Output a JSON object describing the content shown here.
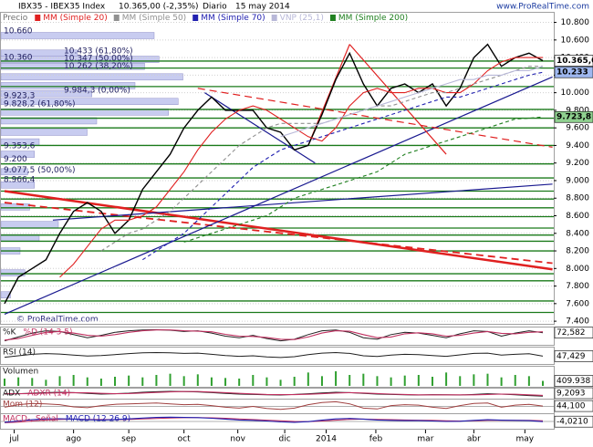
{
  "chart_data": [
    {
      "type": "line",
      "title": "IBX35 - IBEX35 Index",
      "last_change": "10.365,00 (-2,35%)",
      "period": "Diario",
      "date": "15 may 2014",
      "source": "www.ProRealTime.com",
      "watermark": "© ProRealTime.com",
      "ylim": [
        7370,
        10920
      ],
      "yticks": [
        {
          "value": 7400,
          "label": "7.400"
        },
        {
          "value": 7600,
          "label": "7.600"
        },
        {
          "value": 7800,
          "label": "7.800"
        },
        {
          "value": 8000,
          "label": "8.000"
        },
        {
          "value": 8200,
          "label": "8.200"
        },
        {
          "value": 8400,
          "label": "8.400"
        },
        {
          "value": 8600,
          "label": "8.600"
        },
        {
          "value": 8800,
          "label": "8.800"
        },
        {
          "value": 9000,
          "label": "9.000"
        },
        {
          "value": 9200,
          "label": "9.200"
        },
        {
          "value": 9400,
          "label": "9.400"
        },
        {
          "value": 9600,
          "label": "9.600"
        },
        {
          "value": 9800,
          "label": "9.800"
        },
        {
          "value": 10000,
          "label": "10.000"
        },
        {
          "value": 10200,
          "label": "10.200"
        },
        {
          "value": 10400,
          "label": "10.400"
        },
        {
          "value": 10600,
          "label": "10.600"
        },
        {
          "value": 10800,
          "label": "10.800"
        }
      ],
      "grid": true,
      "x_labels": [
        {
          "value": 0.7,
          "label": "jul"
        },
        {
          "value": 5,
          "label": "ago"
        },
        {
          "value": 9,
          "label": "sep"
        },
        {
          "value": 13,
          "label": "oct"
        },
        {
          "value": 16.9,
          "label": "nov"
        },
        {
          "value": 20.3,
          "label": "dic"
        },
        {
          "value": 23.3,
          "label": "2014"
        },
        {
          "value": 26.9,
          "label": "feb"
        },
        {
          "value": 30.5,
          "label": "mar"
        },
        {
          "value": 34,
          "label": "abr"
        },
        {
          "value": 37.7,
          "label": "may"
        }
      ],
      "series": [
        {
          "name": "Precio",
          "color": "#000000",
          "values": [
            7600,
            7900,
            8000,
            8100,
            8400,
            8650,
            8750,
            8650,
            8400,
            8550,
            8900,
            9100,
            9300,
            9600,
            9800,
            9950,
            9800,
            9800,
            9800,
            9600,
            9550,
            9350,
            9400,
            9750,
            10150,
            10450,
            10100,
            9850,
            10050,
            10100,
            10000,
            10100,
            9850,
            10050,
            10400,
            10550,
            10300,
            10400,
            10450,
            10365
          ]
        },
        {
          "name": "MM (Simple 20)",
          "color": "#e02020",
          "values": [
            null,
            null,
            null,
            null,
            7900,
            8050,
            8250,
            8450,
            8550,
            8550,
            8600,
            8700,
            8900,
            9100,
            9350,
            9550,
            9700,
            9800,
            9850,
            9800,
            9700,
            9600,
            9500,
            9450,
            9600,
            9850,
            10000,
            10050,
            10000,
            10000,
            10050,
            10050,
            10000,
            10000,
            10100,
            10250,
            10350,
            10400,
            10400,
            10400
          ]
        },
        {
          "name": "MM (Simple 50)",
          "color": "#909090",
          "dash": true,
          "values": [
            null,
            null,
            null,
            null,
            null,
            null,
            null,
            8200,
            8300,
            8400,
            8450,
            8550,
            8650,
            8800,
            8950,
            9100,
            9250,
            9400,
            9500,
            9600,
            9650,
            9650,
            9650,
            9650,
            9700,
            9750,
            9800,
            9850,
            9850,
            9900,
            9950,
            10000,
            10000,
            10050,
            10100,
            10150,
            10200,
            10250,
            10300,
            10300
          ]
        },
        {
          "name": "MM (Simple 70)",
          "color": "#2020b0",
          "dash": true,
          "values": [
            null,
            null,
            null,
            null,
            null,
            null,
            null,
            null,
            null,
            null,
            8100,
            8200,
            8300,
            8400,
            8550,
            8700,
            8850,
            9000,
            9150,
            9250,
            9350,
            9400,
            9450,
            9500,
            9550,
            9600,
            9650,
            9700,
            9750,
            9800,
            9850,
            9900,
            9950,
            9950,
            10000,
            10050,
            10100,
            10150,
            10200,
            10233
          ]
        },
        {
          "name": "VNP (25,1)",
          "color": "#b8b8d8",
          "values": [
            null,
            null,
            null,
            null,
            null,
            null,
            null,
            null,
            null,
            null,
            null,
            null,
            null,
            null,
            null,
            null,
            null,
            null,
            null,
            null,
            9500,
            9550,
            9600,
            9650,
            9700,
            9750,
            9800,
            9850,
            9900,
            9950,
            10000,
            10050,
            10100,
            10150,
            10150,
            10200,
            10200,
            10250,
            10250,
            10300
          ]
        },
        {
          "name": "MM (Simple 200)",
          "color": "#208020",
          "dash": true,
          "values": [
            null,
            null,
            null,
            null,
            null,
            null,
            null,
            null,
            null,
            null,
            null,
            null,
            null,
            8300,
            8350,
            8400,
            8450,
            8500,
            8550,
            8600,
            8700,
            8800,
            8850,
            8900,
            8950,
            9000,
            9050,
            9100,
            9200,
            9300,
            9350,
            9400,
            9450,
            9500,
            9550,
            9600,
            9650,
            9700,
            9710,
            9723.8
          ]
        }
      ],
      "levels": [
        10360,
        10280,
        10070,
        9810,
        9710,
        9600,
        9400,
        9190,
        9030,
        8880,
        8790,
        8690,
        8590,
        8460,
        8380,
        8310,
        8200,
        7940,
        7860,
        7630,
        7500
      ],
      "levels_color": "#1a7a1a",
      "trendlines": [
        {
          "from": [
            0,
            8880
          ],
          "to": [
            39.7,
            7990
          ],
          "color": "#e02020"
        },
        {
          "from": [
            0,
            8750
          ],
          "to": [
            39.7,
            8060
          ],
          "color": "#e02020"
        },
        {
          "from": [
            0,
            7480
          ],
          "to": [
            39.7,
            10180
          ],
          "color": "#1a1a90"
        },
        {
          "from": [
            3.5,
            8550
          ],
          "to": [
            39.7,
            8960
          ],
          "color": "#1a1a90"
        },
        {
          "from": [
            14,
            10050
          ],
          "to": [
            39.7,
            9380
          ],
          "color": "#e02020"
        },
        {
          "from": [
            14.5,
            10000
          ],
          "to": [
            22.5,
            9200
          ],
          "color": "#1a1a90"
        },
        {
          "from": [
            22,
            9400
          ],
          "to": [
            25,
            10550
          ],
          "color": "#e02020"
        },
        {
          "from": [
            25,
            10550
          ],
          "to": [
            32,
            9300
          ],
          "color": "#e02020"
        }
      ],
      "volume_profile": {
        "color": "#c8ccf0",
        "xlim": [
          0,
          200
        ],
        "prices": [
          10650,
          10450,
          10380,
          10300,
          10180,
          10080,
          9990,
          9900,
          9780,
          9680,
          9550,
          9440,
          9300,
          9100,
          8950,
          8700,
          8500,
          8350,
          8200,
          7950,
          7700
        ],
        "values": [
          160,
          80,
          165,
          150,
          190,
          140,
          95,
          185,
          175,
          100,
          90,
          40,
          35,
          28,
          35,
          30,
          60,
          40,
          20,
          25,
          10
        ]
      },
      "level_labels": [
        {
          "value": 10660,
          "label": "10.660"
        },
        {
          "value": 10360,
          "label": "10.360"
        },
        {
          "value": 10433,
          "label": "10.433 (61,80%)"
        },
        {
          "value": 10347,
          "label": "10.347 (50,00%)"
        },
        {
          "value": 10262,
          "label": "10.262 (38,20%)"
        },
        {
          "value": 9984.3,
          "label": "9.984,3 (0,00%)"
        },
        {
          "value": 9923.3,
          "label": "9.923,3"
        },
        {
          "value": 9828.2,
          "label": "9.828,2 (61,80%)"
        },
        {
          "value": 9353.6,
          "label": "9.353,6"
        },
        {
          "value": 9200,
          "label": "9.200"
        },
        {
          "value": 9077.5,
          "label": "9.077,5 (50,00%)"
        },
        {
          "value": 8966.4,
          "label": "8.966,4"
        }
      ],
      "price_labels": [
        {
          "value": 10365,
          "label": "10.365,00",
          "color": "#ffffff"
        },
        {
          "value": 10233,
          "label": "10.233",
          "color": "#9fb8f0"
        },
        {
          "value": 9723.8,
          "label": "9.723,8",
          "color": "#8fd08f"
        }
      ]
    },
    {
      "type": "line",
      "ylim": [
        0,
        100
      ],
      "last": {
        "value": 72.582,
        "label": "72,582"
      },
      "series": [
        {
          "name": "%K",
          "color": "#202020",
          "values": [
            20,
            45,
            70,
            85,
            80,
            60,
            40,
            55,
            75,
            85,
            90,
            92,
            88,
            80,
            85,
            70,
            50,
            40,
            55,
            35,
            20,
            30,
            60,
            85,
            90,
            75,
            40,
            30,
            60,
            75,
            70,
            55,
            40,
            65,
            85,
            80,
            50,
            70,
            85,
            72.582
          ]
        },
        {
          "name": "%D (14 3 5)",
          "color": "#c03060",
          "values": [
            25,
            35,
            55,
            75,
            80,
            70,
            55,
            50,
            60,
            75,
            85,
            90,
            90,
            85,
            82,
            78,
            62,
            50,
            48,
            42,
            30,
            28,
            45,
            70,
            85,
            82,
            60,
            40,
            45,
            65,
            72,
            65,
            50,
            55,
            70,
            80,
            68,
            65,
            75,
            78
          ]
        }
      ]
    },
    {
      "type": "line",
      "ylim": [
        0,
        100
      ],
      "last": {
        "value": 47.429,
        "label": "47,429"
      },
      "series": [
        {
          "name": "RSI (14)",
          "color": "#202020",
          "values": [
            40,
            50,
            60,
            65,
            62,
            55,
            48,
            52,
            58,
            65,
            70,
            72,
            70,
            66,
            68,
            60,
            52,
            46,
            50,
            42,
            38,
            44,
            58,
            68,
            72,
            66,
            50,
            45,
            55,
            60,
            58,
            52,
            46,
            56,
            66,
            68,
            55,
            60,
            64,
            47.429
          ]
        }
      ]
    },
    {
      "type": "bar",
      "ylim": [
        0,
        1500000
      ],
      "last": {
        "value": 409938,
        "label": "409.938"
      },
      "series": [
        {
          "name": "Volumen",
          "color": "#30a030",
          "values": [
            600000,
            700000,
            650000,
            500000,
            800000,
            900000,
            700000,
            600000,
            750000,
            850000,
            700000,
            900000,
            1000000,
            800000,
            950000,
            700000,
            650000,
            600000,
            900000,
            700000,
            500000,
            750000,
            1100000,
            800000,
            1200000,
            900000,
            1000000,
            800000,
            700000,
            850000,
            900000,
            750000,
            1100000,
            800000,
            950000,
            1000000,
            700000,
            900000,
            800000,
            409938
          ]
        }
      ]
    },
    {
      "type": "line",
      "ylim": [
        0,
        45
      ],
      "last": {
        "value": 9.2093,
        "label": "9,2093"
      },
      "series": [
        {
          "name": "ADX",
          "color": "#202020",
          "values": [
            20,
            22,
            25,
            28,
            30,
            28,
            24,
            20,
            22,
            25,
            30,
            33,
            35,
            34,
            32,
            28,
            24,
            20,
            18,
            16,
            15,
            18,
            22,
            26,
            30,
            28,
            24,
            20,
            18,
            16,
            15,
            17,
            16,
            15,
            18,
            22,
            20,
            16,
            12,
            9.2093
          ]
        },
        {
          "name": "ADXR (14)",
          "color": "#c03060",
          "values": [
            22,
            22,
            23,
            25,
            27,
            28,
            27,
            24,
            22,
            23,
            26,
            29,
            32,
            34,
            34,
            31,
            28,
            24,
            21,
            18,
            17,
            17,
            19,
            22,
            26,
            28,
            26,
            23,
            20,
            18,
            16,
            16,
            16,
            16,
            16,
            18,
            20,
            19,
            16,
            13
          ]
        }
      ]
    },
    {
      "type": "line",
      "ylim": [
        -700,
        700
      ],
      "last": {
        "value": 44.1,
        "label": "44,100"
      },
      "series": [
        {
          "name": "Mom (12)",
          "color": "#a04040",
          "values": [
            -100,
            200,
            350,
            300,
            200,
            -50,
            -150,
            100,
            250,
            300,
            350,
            400,
            300,
            200,
            250,
            100,
            -100,
            -200,
            0,
            -250,
            -350,
            -200,
            200,
            450,
            550,
            300,
            -200,
            -300,
            100,
            200,
            150,
            -100,
            -250,
            100,
            350,
            400,
            -100,
            150,
            250,
            44.1
          ]
        }
      ]
    },
    {
      "type": "line",
      "ylim": [
        -150,
        150
      ],
      "last": {
        "value": -4.021,
        "label": "-4,0210"
      },
      "series": [
        {
          "name": "MACD-, Señal",
          "color": "#c03060",
          "values": [
            -30,
            -15,
            10,
            35,
            50,
            55,
            50,
            45,
            45,
            50,
            60,
            70,
            80,
            88,
            90,
            85,
            75,
            60,
            45,
            30,
            15,
            0,
            -5,
            10,
            30,
            50,
            55,
            50,
            42,
            35,
            30,
            25,
            15,
            10,
            15,
            25,
            28,
            27,
            25,
            15
          ]
        },
        {
          "name": "MACD (12 26 9)",
          "color": "#2020b0",
          "values": [
            -20,
            10,
            40,
            60,
            65,
            55,
            40,
            35,
            45,
            60,
            80,
            95,
            100,
            95,
            90,
            75,
            55,
            35,
            25,
            10,
            -10,
            -20,
            -5,
            30,
            60,
            70,
            55,
            35,
            25,
            20,
            20,
            10,
            0,
            5,
            25,
            40,
            30,
            25,
            20,
            -4.021
          ]
        }
      ]
    }
  ]
}
